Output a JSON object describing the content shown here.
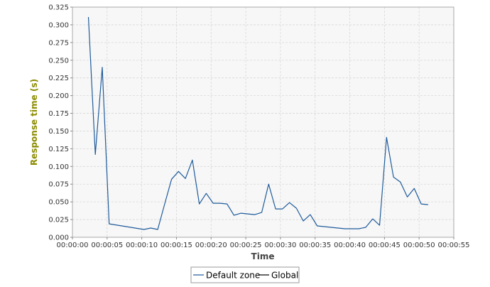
{
  "chart_data": {
    "type": "line",
    "title": "",
    "xlabel": "Time",
    "ylabel": "Response time (s)",
    "xlim": [
      0,
      55
    ],
    "ylim": [
      0,
      0.325
    ],
    "x_ticks": [
      0,
      5,
      10,
      15,
      20,
      25,
      30,
      35,
      40,
      45,
      50,
      55
    ],
    "x_tick_labels": [
      "00:00:00",
      "00:00:05",
      "00:00:10",
      "00:00:15",
      "00:00:20",
      "00:00:25",
      "00:00:30",
      "00:00:35",
      "00:00:40",
      "00:00:45",
      "00:00:50",
      "00:00:55"
    ],
    "y_ticks": [
      0,
      0.025,
      0.05,
      0.075,
      0.1,
      0.125,
      0.15,
      0.175,
      0.2,
      0.225,
      0.25,
      0.275,
      0.3,
      0.325
    ],
    "y_tick_labels": [
      "0.000",
      "0.025",
      "0.050",
      "0.075",
      "0.100",
      "0.125",
      "0.150",
      "0.175",
      "0.200",
      "0.225",
      "0.250",
      "0.275",
      "0.300",
      "0.325"
    ],
    "grid": true,
    "legend_position": "bottom",
    "series": [
      {
        "name": "Default zone",
        "color": "#1f5b9b",
        "x": [
          2.3,
          3.3,
          4.3,
          5.3,
          10.3,
          11.3,
          12.3,
          13.3,
          14.3,
          15.3,
          16.3,
          17.3,
          18.3,
          19.3,
          20.3,
          21.3,
          22.3,
          23.3,
          24.3,
          25.3,
          26.3,
          27.3,
          28.3,
          29.3,
          30.3,
          31.3,
          32.3,
          33.3,
          34.3,
          35.3,
          36.3,
          37.3,
          38.3,
          39.3,
          40.3,
          41.3,
          42.3,
          43.3,
          44.3,
          45.3,
          46.3,
          47.3,
          48.3,
          49.3,
          50.3,
          51.3
        ],
        "values": [
          0.311,
          0.117,
          0.24,
          0.019,
          0.011,
          0.013,
          0.011,
          0.047,
          0.082,
          0.093,
          0.083,
          0.109,
          0.047,
          0.062,
          0.048,
          0.048,
          0.047,
          0.031,
          0.034,
          0.033,
          0.032,
          0.035,
          0.075,
          0.04,
          0.04,
          0.049,
          0.041,
          0.023,
          0.032,
          0.016,
          0.015,
          0.014,
          0.013,
          0.012,
          0.012,
          0.012,
          0.014,
          0.026,
          0.017,
          0.141,
          0.085,
          0.078,
          0.057,
          0.069,
          0.047,
          0.046
        ]
      },
      {
        "name": "Global",
        "color": "#000000",
        "x": [],
        "values": []
      }
    ]
  }
}
